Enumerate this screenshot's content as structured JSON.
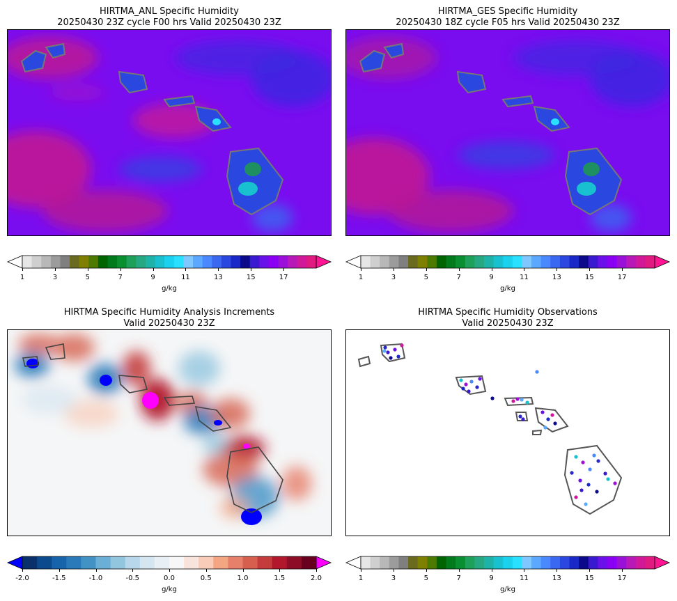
{
  "panels": {
    "anl": {
      "title": "HIRTMA_ANL Specific Humidity\n20250430 23Z cycle F00 hrs Valid 20250430 23Z"
    },
    "ges": {
      "title": "HIRTMA_GES Specific Humidity\n20250430 18Z cycle F05 hrs Valid 20250430 23Z"
    },
    "inc": {
      "title": "HIRTMA Specific Humidity Analysis Increments\nValid 20250430 23Z"
    },
    "obs": {
      "title": "HIRTMA Specific Humidity Observations\nValid 20250430 23Z"
    }
  },
  "colorbars": {
    "humidity": {
      "ticks": [
        "1",
        "3",
        "5",
        "7",
        "9",
        "11",
        "13",
        "15",
        "17"
      ],
      "unit": "g/kg",
      "colors": [
        "#ffffff",
        "#e6e6e6",
        "#cfcfcf",
        "#b8b8b8",
        "#9c9c9c",
        "#7f7f7f",
        "#6b6b1f",
        "#808000",
        "#4d7a00",
        "#006400",
        "#007a1a",
        "#0a8f30",
        "#1ea05a",
        "#26a882",
        "#1fb2a8",
        "#18c0d0",
        "#1ad2ee",
        "#29e0ff",
        "#7ec8ff",
        "#5aa8ff",
        "#4a88ff",
        "#3a68f0",
        "#2a48e0",
        "#1a28c8",
        "#0a0a8a",
        "#3a1ad0",
        "#6a10e8",
        "#8a00f5",
        "#9a10d8",
        "#b818b8",
        "#d01898",
        "#e01a80",
        "#ff1493"
      ]
    },
    "increment": {
      "ticks": [
        "-2.0",
        "-1.5",
        "-1.0",
        "-0.5",
        "0.0",
        "0.5",
        "1.0",
        "1.5",
        "2.0"
      ],
      "unit": "g/kg",
      "colors": [
        "#0000ff",
        "#08306b",
        "#0b4a8c",
        "#1764ab",
        "#2a7ab9",
        "#4292c6",
        "#6baed6",
        "#92c5de",
        "#b7d7ea",
        "#d5e6f1",
        "#e8f0f5",
        "#f7f7f7",
        "#f9e4db",
        "#f8ccb8",
        "#f4a582",
        "#e7806a",
        "#d6604d",
        "#c43c3c",
        "#b2182b",
        "#8c0d25",
        "#67001f",
        "#ff00ff"
      ]
    }
  }
}
